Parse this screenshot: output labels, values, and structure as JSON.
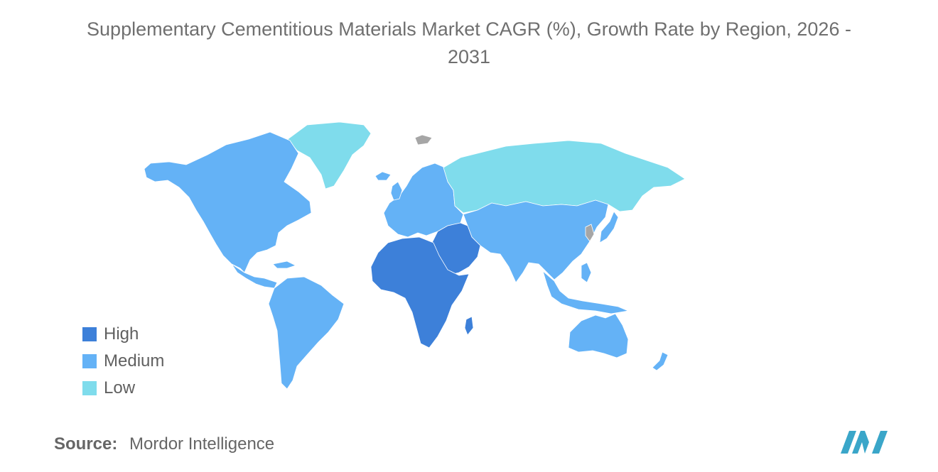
{
  "title_lines": [
    "Supplementary Cementitious Materials Market CAGR (%), Growth Rate by Region, 2026 -",
    "2031"
  ],
  "colors": {
    "high": "#3d80d9",
    "medium": "#64b2f6",
    "low": "#7fdcec",
    "no_data": "#a6a6a6",
    "logo": "#3aa6c9"
  },
  "legend": [
    {
      "label": "High",
      "color": "#3d80d9"
    },
    {
      "label": "Medium",
      "color": "#64b2f6"
    },
    {
      "label": "Low",
      "color": "#7fdcec"
    }
  ],
  "regions": [
    {
      "name": "North America",
      "level": "Medium"
    },
    {
      "name": "South America",
      "level": "Medium"
    },
    {
      "name": "Europe",
      "level": "Medium"
    },
    {
      "name": "Asia-Pacific",
      "level": "Medium"
    },
    {
      "name": "Australia and New Zealand",
      "level": "Medium"
    },
    {
      "name": "Middle East and Africa",
      "level": "High"
    },
    {
      "name": "Russia",
      "level": "Low"
    },
    {
      "name": "Greenland",
      "level": "Low"
    }
  ],
  "source": {
    "label": "Source:",
    "value": "Mordor Intelligence"
  }
}
